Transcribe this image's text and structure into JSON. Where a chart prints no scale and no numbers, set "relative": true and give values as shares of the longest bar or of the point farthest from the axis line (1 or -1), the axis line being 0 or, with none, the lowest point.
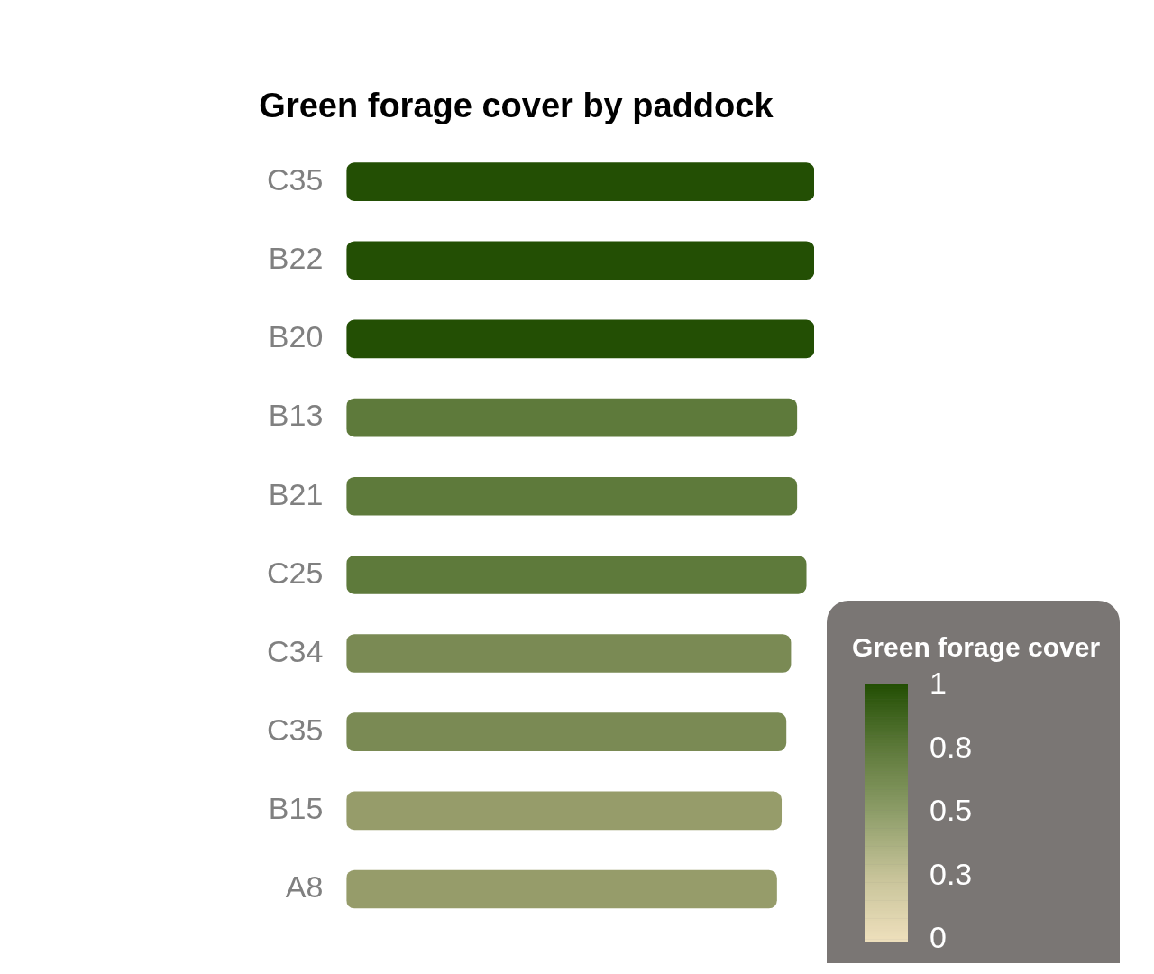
{
  "chart_data": {
    "type": "bar",
    "orientation": "horizontal",
    "relative": true,
    "title": "Green forage cover by paddock",
    "clabel": "Green forage cover",
    "clim": [
      0,
      1
    ],
    "cticks": [
      1,
      {
        "value": 0.75,
        "label": "0.8"
      },
      0.5,
      {
        "value": 0.25,
        "label": "0.3"
      },
      0
    ],
    "categories": [
      "C35",
      "B22",
      "B20",
      "B13",
      "B21",
      "C25",
      "C34",
      "C35",
      "B15",
      "A8"
    ],
    "values": [
      1,
      1,
      1,
      0.963,
      0.963,
      0.983,
      0.95,
      0.94,
      0.93,
      0.92
    ],
    "colors": [
      "#234f04",
      "#234f04",
      "#234f04",
      "#5e7a3b",
      "#5e7a3b",
      "#5e7a3b",
      "#7a8a54",
      "#7a8a54",
      "#969c6a",
      "#969c6a"
    ]
  }
}
